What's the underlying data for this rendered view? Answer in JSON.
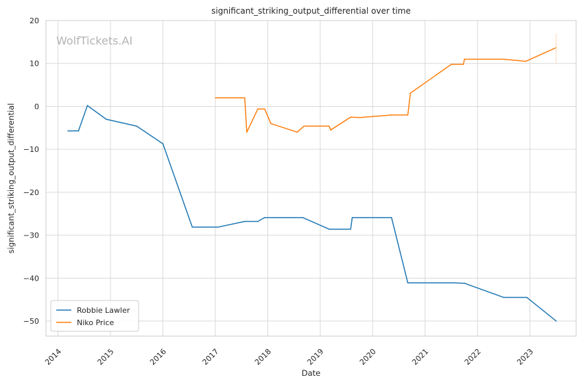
{
  "chart_data": {
    "type": "line",
    "title": "significant_striking_output_differential over time",
    "xlabel": "Date",
    "ylabel": "significant_striking_output_differential",
    "watermark": "WolfTickets.AI",
    "xlim": [
      2013.77,
      2023.88
    ],
    "ylim": [
      -53.5,
      20
    ],
    "x_ticks": [
      2014,
      2015,
      2016,
      2017,
      2018,
      2019,
      2020,
      2021,
      2022,
      2023
    ],
    "x_tick_labels": [
      "2014",
      "2015",
      "2016",
      "2017",
      "2018",
      "2019",
      "2020",
      "2021",
      "2022",
      "2023"
    ],
    "y_ticks": [
      -50,
      -40,
      -30,
      -20,
      -10,
      0,
      10,
      20
    ],
    "y_tick_labels": [
      "−50",
      "−40",
      "−30",
      "−20",
      "−10",
      "0",
      "10",
      "20"
    ],
    "grid": true,
    "legend_position": "lower-left",
    "series": [
      {
        "name": "Robbie Lawler",
        "color": "#1f77b4",
        "points": [
          [
            2014.19,
            -5.7
          ],
          [
            2014.39,
            -5.7
          ],
          [
            2014.56,
            0.2
          ],
          [
            2014.92,
            -3.0
          ],
          [
            2015.5,
            -4.6
          ],
          [
            2016.0,
            -8.7
          ],
          [
            2016.56,
            -28.1
          ],
          [
            2017.06,
            -28.1
          ],
          [
            2017.56,
            -26.8
          ],
          [
            2017.81,
            -26.8
          ],
          [
            2017.94,
            -25.9
          ],
          [
            2018.67,
            -25.9
          ],
          [
            2019.17,
            -28.6
          ],
          [
            2019.58,
            -28.6
          ],
          [
            2019.61,
            -25.9
          ],
          [
            2020.36,
            -25.9
          ],
          [
            2020.67,
            -41.1
          ],
          [
            2021.56,
            -41.1
          ],
          [
            2021.75,
            -41.2
          ],
          [
            2022.5,
            -44.5
          ],
          [
            2022.94,
            -44.5
          ],
          [
            2023.5,
            -50.0
          ]
        ]
      },
      {
        "name": "Niko Price",
        "color": "#ff7f0e",
        "points": [
          [
            2017.0,
            2.0
          ],
          [
            2017.56,
            2.0
          ],
          [
            2017.6,
            -6.0
          ],
          [
            2017.81,
            -0.6
          ],
          [
            2017.94,
            -0.6
          ],
          [
            2018.06,
            -4.0
          ],
          [
            2018.56,
            -6.0
          ],
          [
            2018.69,
            -4.6
          ],
          [
            2019.17,
            -4.6
          ],
          [
            2019.2,
            -5.5
          ],
          [
            2019.58,
            -2.5
          ],
          [
            2019.75,
            -2.6
          ],
          [
            2020.36,
            -2.0
          ],
          [
            2020.67,
            -2.0
          ],
          [
            2020.72,
            3.1
          ],
          [
            2021.5,
            9.8
          ],
          [
            2021.73,
            9.8
          ],
          [
            2021.75,
            11.0
          ],
          [
            2022.5,
            11.0
          ],
          [
            2022.92,
            10.5
          ],
          [
            2023.5,
            13.7
          ]
        ]
      }
    ]
  }
}
